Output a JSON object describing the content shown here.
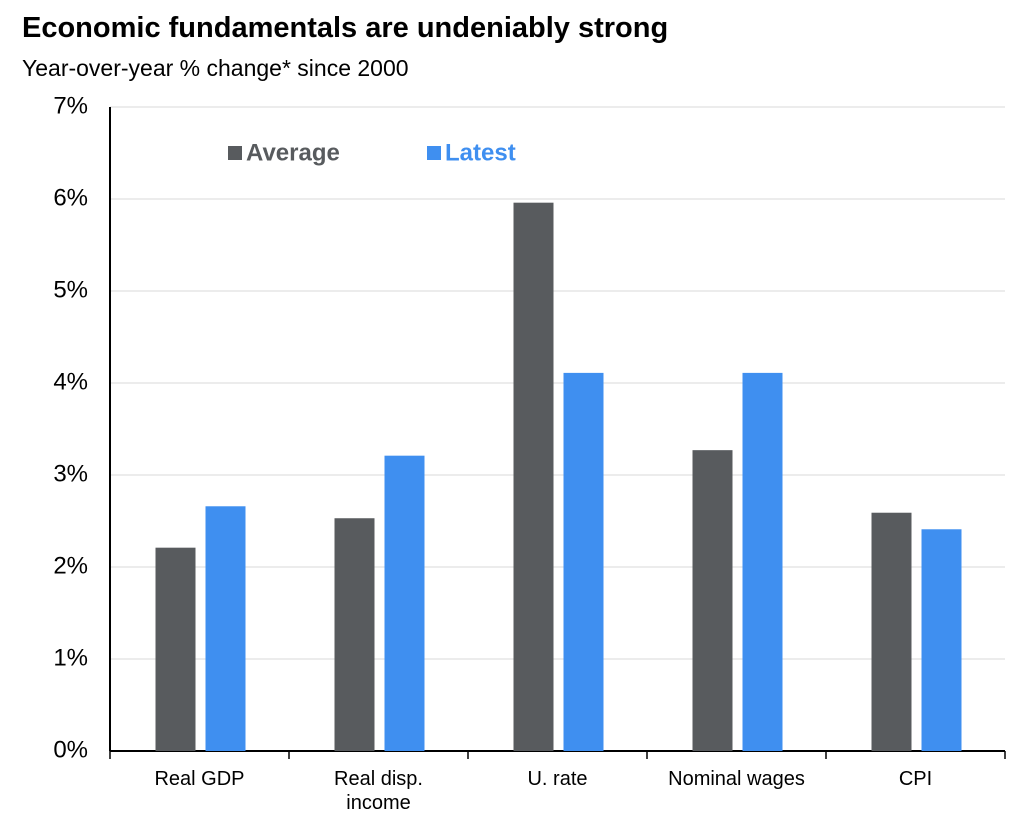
{
  "chart_data": {
    "type": "bar",
    "title": "Economic fundamentals are undeniably strong",
    "subtitle": "Year-over-year % change* since 2000",
    "categories": [
      "Real GDP",
      "Real disp.\nincome",
      "U. rate",
      "Nominal wages",
      "CPI"
    ],
    "series": [
      {
        "name": "Average",
        "color": "#585b5e",
        "values": [
          2.21,
          2.53,
          5.96,
          3.27,
          2.59
        ]
      },
      {
        "name": "Latest",
        "color": "#3f8ff0",
        "values": [
          2.66,
          3.21,
          4.11,
          4.11,
          2.41
        ]
      }
    ],
    "ylim": [
      0,
      7
    ],
    "yticks": [
      {
        "value": 0,
        "label": "0%"
      },
      {
        "value": 1,
        "label": "1%"
      },
      {
        "value": 2,
        "label": "2%"
      },
      {
        "value": 3,
        "label": "3%"
      },
      {
        "value": 4,
        "label": "4%"
      },
      {
        "value": 5,
        "label": "5%"
      },
      {
        "value": 6,
        "label": "6%"
      },
      {
        "value": 7,
        "label": "7%"
      }
    ],
    "grid": true
  }
}
